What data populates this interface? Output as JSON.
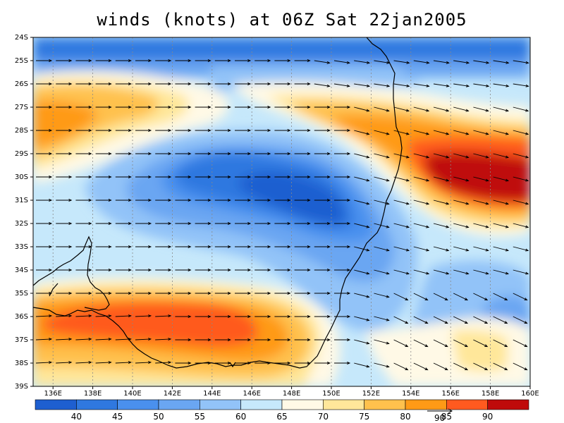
{
  "title": "winds (knots) at 06Z Sat 22jan2005",
  "lat_labels": [
    "24S",
    "25S",
    "26S",
    "27S",
    "28S",
    "29S",
    "30S",
    "31S",
    "32S",
    "33S",
    "34S",
    "35S",
    "36S",
    "37S",
    "38S",
    "39S"
  ],
  "lon_labels": [
    "136E",
    "138E",
    "140E",
    "142E",
    "144E",
    "146E",
    "148E",
    "150E",
    "152E",
    "154E",
    "156E",
    "158E",
    "160E"
  ],
  "colorbar": {
    "labels": [
      "40",
      "45",
      "50",
      "55",
      "60",
      "65",
      "70",
      "75",
      "80",
      "85",
      "90"
    ],
    "colors": [
      "#1e5fd0",
      "#2f78e0",
      "#4a90ee",
      "#6aa6f2",
      "#92c3f8",
      "#c6e8fb",
      "#fff9e6",
      "#ffe79a",
      "#ffc14d",
      "#ff9a16",
      "#ff5a1f",
      "#bf0a0a"
    ]
  },
  "reference_vector_label": "90",
  "chart_data": {
    "type": "map",
    "variable": "wind speed",
    "units": "knots",
    "time": "06Z Sat 22jan2005",
    "lon_range": [
      135,
      160
    ],
    "lat_range": [
      -39,
      -24
    ],
    "contour_levels": [
      40,
      45,
      50,
      55,
      60,
      65,
      70,
      75,
      80,
      85,
      90
    ],
    "vector_overlay": true,
    "gridlines": "dotted"
  }
}
